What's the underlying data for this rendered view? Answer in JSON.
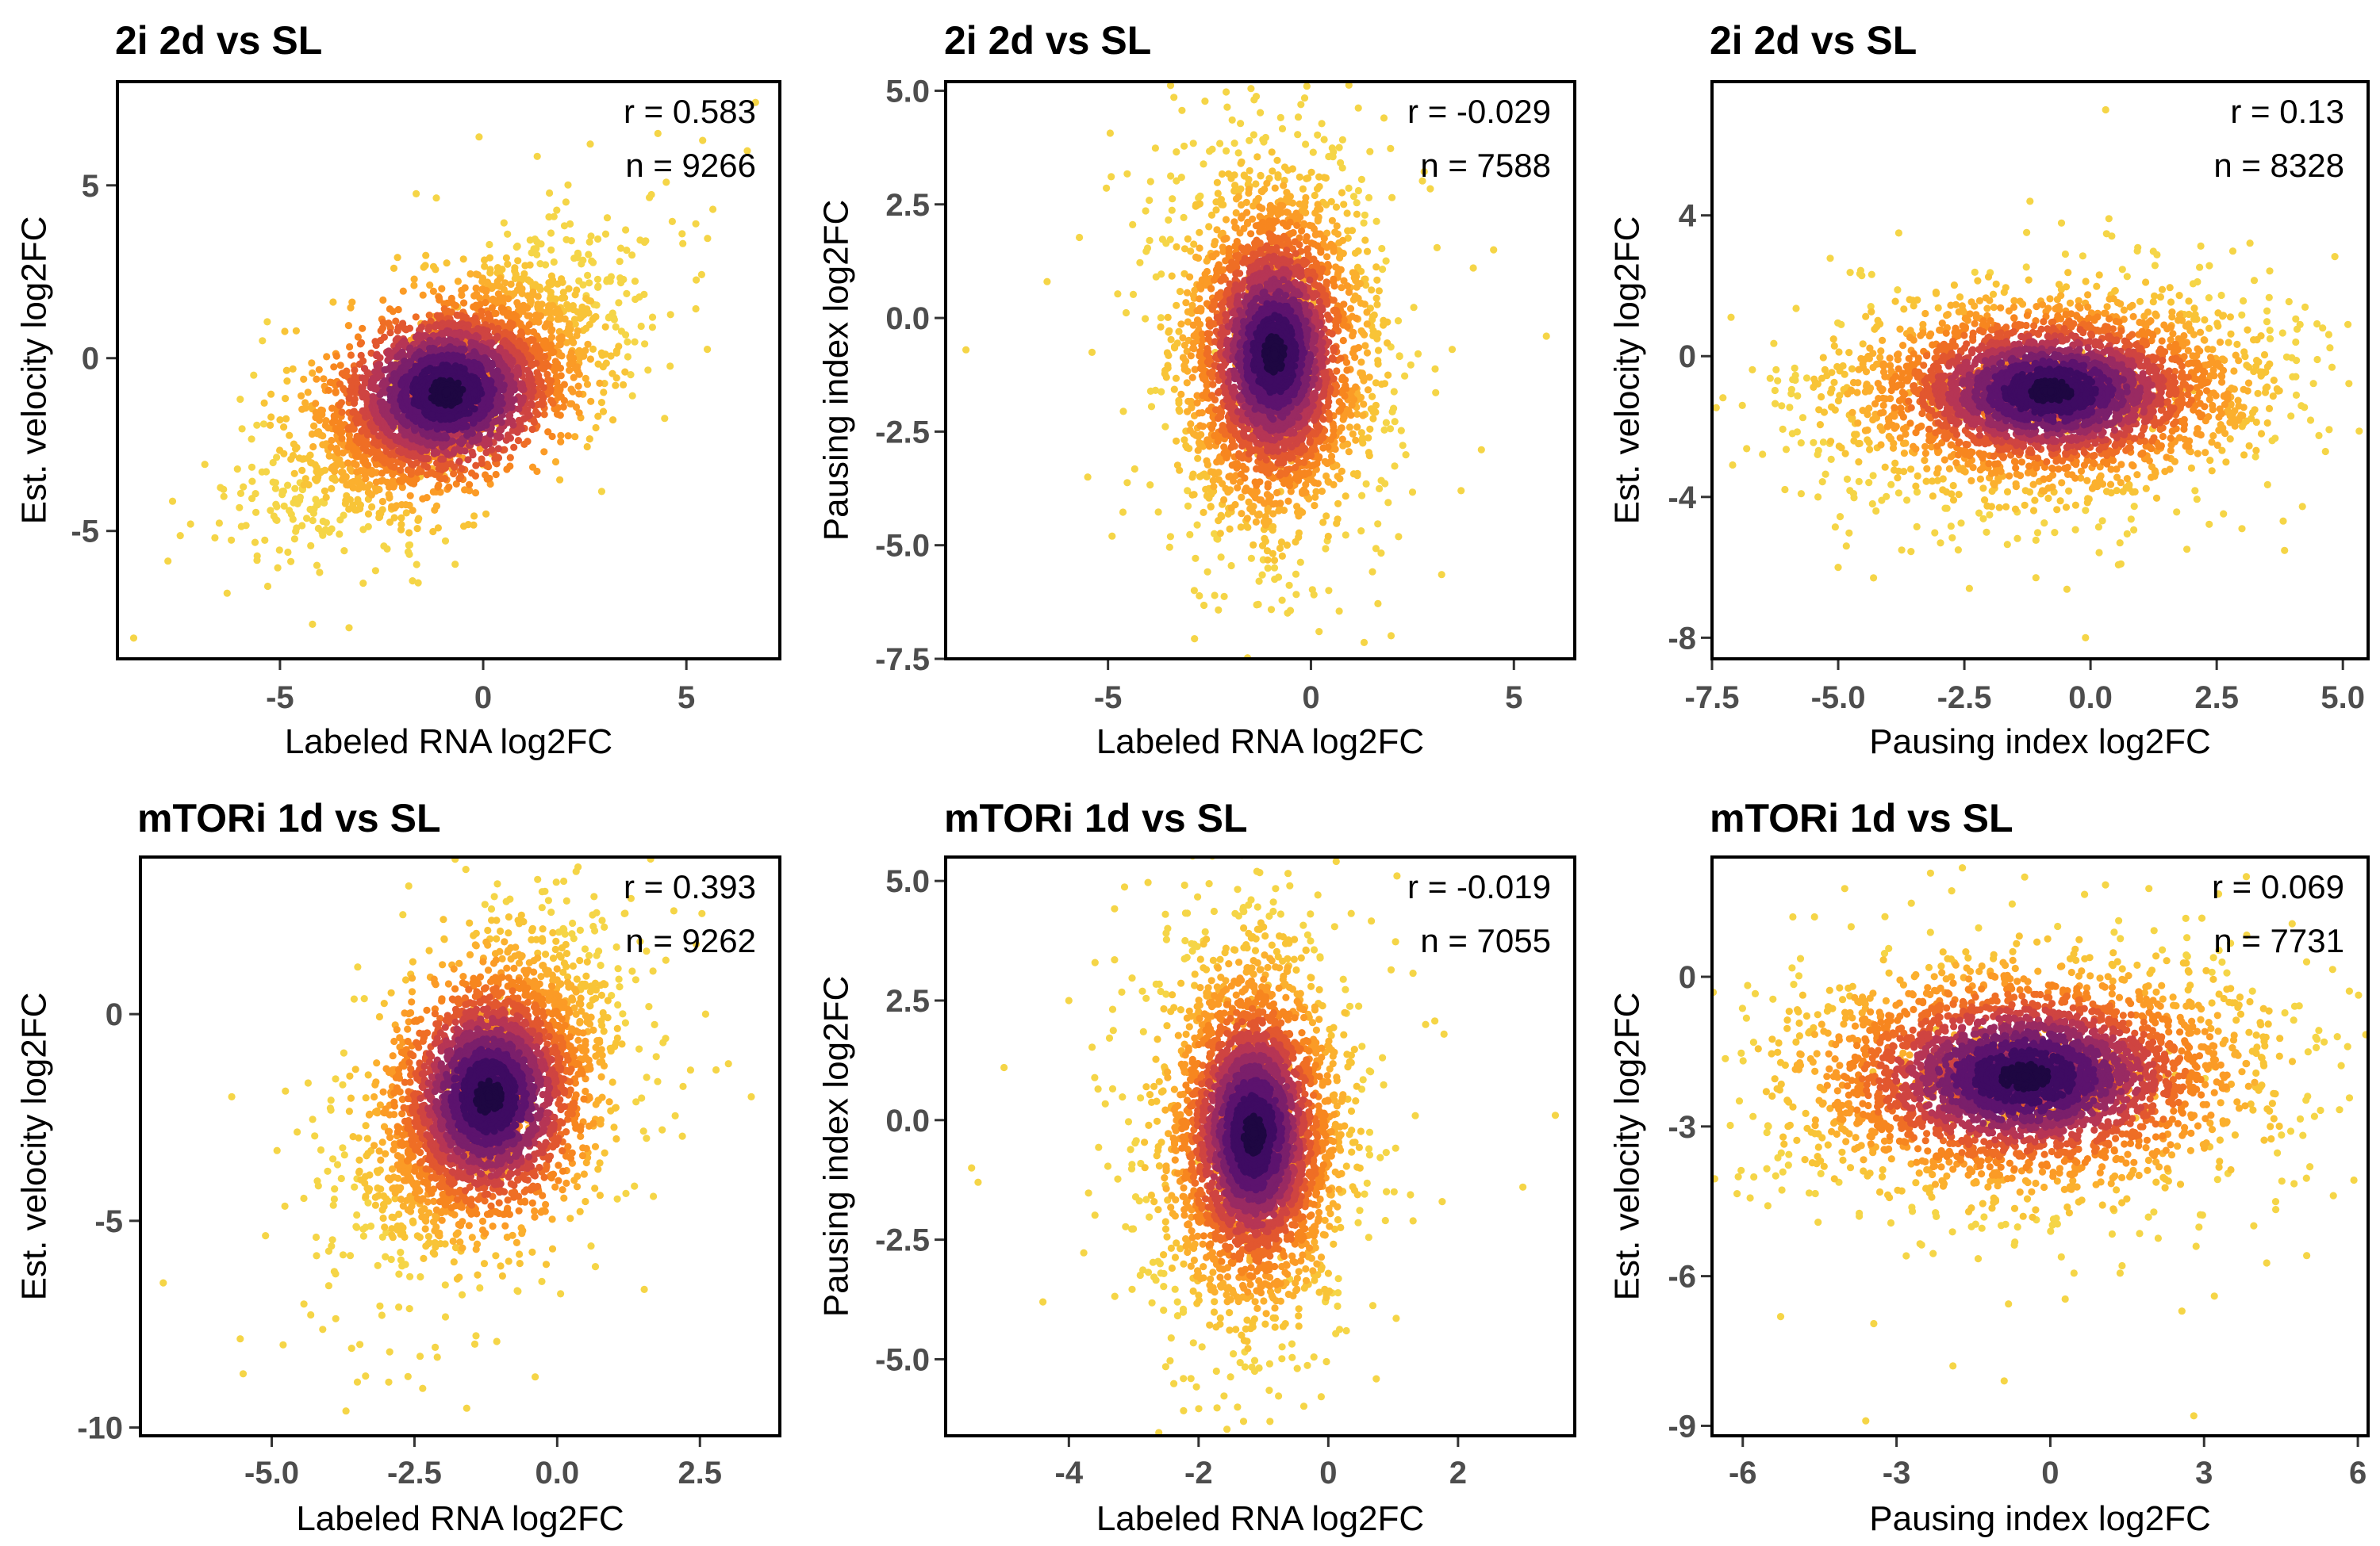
{
  "chart_data": [
    {
      "type": "scatter",
      "title": "2i 2d vs SL",
      "xlabel": "Labeled RNA log2FC",
      "ylabel": "Est. velocity log2FC",
      "xlim": [
        -9,
        7.3
      ],
      "ylim": [
        -8.7,
        8
      ],
      "xticks": [
        -5,
        0,
        5
      ],
      "yticks": [
        -5,
        0,
        5
      ],
      "xtick_labels": [
        "-5",
        "0",
        "5"
      ],
      "ytick_labels": [
        "-5",
        "0",
        "5"
      ],
      "annotations": [
        "r = 0.583",
        "n = 9266"
      ],
      "density": {
        "center": [
          -0.9,
          -1.0
        ],
        "spread": [
          1.6,
          1.5
        ],
        "correlation": 0.583,
        "core_spread": [
          0.45,
          0.75
        ],
        "n": 9266
      },
      "outliers": [
        [
          -8.6,
          -8.1
        ],
        [
          -7.2,
          -4.8
        ],
        [
          -6.6,
          -5.2
        ],
        [
          -6.3,
          -6.8
        ],
        [
          -5.3,
          -6.6
        ],
        [
          -4.2,
          -7.7
        ],
        [
          -3.3,
          -7.8
        ],
        [
          -1.6,
          -6.5
        ],
        [
          6.5,
          6.0
        ],
        [
          6.7,
          7.4
        ],
        [
          5.4,
          6.3
        ],
        [
          4.3,
          6.5
        ],
        [
          -0.1,
          6.4
        ]
      ]
    },
    {
      "type": "scatter",
      "title": "2i 2d vs SL",
      "xlabel": "Labeled RNA log2FC",
      "ylabel": "Pausing index log2FC",
      "xlim": [
        -9,
        6.5
      ],
      "ylim": [
        -7.5,
        5.2
      ],
      "xticks": [
        -5,
        0,
        5
      ],
      "yticks": [
        -7.5,
        -5,
        -2.5,
        0,
        2.5,
        5
      ],
      "xtick_labels": [
        "-5",
        "0",
        "5"
      ],
      "ytick_labels": [
        "-7.5",
        "-5.0",
        "-2.5",
        "0.0",
        "2.5",
        "5.0"
      ],
      "annotations": [
        "r = -0.029",
        "n = 7588"
      ],
      "density": {
        "center": [
          -0.9,
          -0.8
        ],
        "spread": [
          1.0,
          1.6
        ],
        "correlation": -0.029,
        "core_spread": [
          0.35,
          0.8
        ],
        "n": 7588
      },
      "outliers": [
        [
          -8.5,
          -0.7
        ],
        [
          -6.5,
          0.8
        ],
        [
          -5.5,
          -3.5
        ],
        [
          -4.9,
          -4.8
        ],
        [
          -1.4,
          4.8
        ],
        [
          -0.1,
          5.1
        ],
        [
          0.2,
          -6.9
        ],
        [
          1.8,
          4.4
        ],
        [
          4.5,
          1.5
        ],
        [
          5.8,
          -0.4
        ],
        [
          4.2,
          -2.9
        ],
        [
          3.7,
          -3.8
        ],
        [
          4.0,
          1.1
        ]
      ]
    },
    {
      "type": "scatter",
      "title": "2i 2d vs SL",
      "xlabel": "Pausing index log2FC",
      "ylabel": "Est. velocity log2FC",
      "xlim": [
        -7.5,
        5.5
      ],
      "ylim": [
        -8.6,
        7.8
      ],
      "xticks": [
        -7.5,
        -5,
        -2.5,
        0,
        2.5,
        5
      ],
      "yticks": [
        -8,
        -4,
        0,
        4
      ],
      "xtick_labels": [
        "-7.5",
        "-5.0",
        "-2.5",
        "0.0",
        "2.5",
        "5.0"
      ],
      "ytick_labels": [
        "-8",
        "-4",
        "0",
        "4"
      ],
      "annotations": [
        "r = 0.13",
        "n = 8328"
      ],
      "density": {
        "center": [
          -0.8,
          -1.0
        ],
        "spread": [
          1.7,
          1.2
        ],
        "correlation": 0.13,
        "core_spread": [
          0.85,
          0.35
        ],
        "n": 8328
      },
      "outliers": [
        [
          -6.9,
          -1.4
        ],
        [
          -6.2,
          -0.7
        ],
        [
          -5.0,
          -6.0
        ],
        [
          -4.3,
          -6.3
        ],
        [
          -2.4,
          -6.6
        ],
        [
          -0.1,
          -8.0
        ],
        [
          0.3,
          7.0
        ],
        [
          -1.2,
          4.4
        ],
        [
          4.6,
          0.8
        ],
        [
          5.1,
          0.9
        ],
        [
          3.6,
          -2.4
        ],
        [
          3.0,
          -4.9
        ],
        [
          -3.8,
          3.5
        ]
      ]
    },
    {
      "type": "scatter",
      "title": "mTORi 1d vs SL",
      "xlabel": "Labeled RNA log2FC",
      "ylabel": "Est. velocity log2FC",
      "xlim": [
        -7.3,
        3.9
      ],
      "ylim": [
        -10.2,
        3.8
      ],
      "xticks": [
        -5,
        -2.5,
        0,
        2.5
      ],
      "yticks": [
        -10,
        -5,
        0
      ],
      "xtick_labels": [
        "-5.0",
        "-2.5",
        "0.0",
        "2.5"
      ],
      "ytick_labels": [
        "-10",
        "-5",
        "0"
      ],
      "annotations": [
        "r = 0.393",
        "n = 9262"
      ],
      "density": {
        "center": [
          -1.2,
          -2.0
        ],
        "spread": [
          0.9,
          1.6
        ],
        "correlation": 0.393,
        "core_spread": [
          0.25,
          0.7
        ],
        "n": 9262
      },
      "outliers": [
        [
          -6.9,
          -6.5
        ],
        [
          -5.5,
          -8.7
        ],
        [
          -4.8,
          -8.0
        ],
        [
          -3.7,
          -9.6
        ],
        [
          -3.5,
          -8.9
        ],
        [
          -2.1,
          -8.3
        ],
        [
          -1.6,
          3.5
        ],
        [
          -2.6,
          3.1
        ],
        [
          2.6,
          0.0
        ],
        [
          3.4,
          -2.0
        ],
        [
          3.0,
          -1.2
        ],
        [
          -5.7,
          -2.0
        ]
      ]
    },
    {
      "type": "scatter",
      "title": "mTORi 1d vs SL",
      "xlabel": "Labeled RNA log2FC",
      "ylabel": "Pausing index log2FC",
      "xlim": [
        -5.9,
        3.8
      ],
      "ylim": [
        -6.6,
        5.5
      ],
      "xticks": [
        -4,
        -2,
        0,
        2
      ],
      "yticks": [
        -5,
        -2.5,
        0,
        2.5,
        5
      ],
      "xtick_labels": [
        "-4",
        "-2",
        "0",
        "2"
      ],
      "ytick_labels": [
        "-5.0",
        "-2.5",
        "0.0",
        "2.5",
        "5.0"
      ],
      "annotations": [
        "r = -0.019",
        "n = 7055"
      ],
      "density": {
        "center": [
          -1.15,
          -0.3
        ],
        "spread": [
          0.6,
          1.6
        ],
        "correlation": -0.019,
        "core_spread": [
          0.25,
          0.85
        ],
        "n": 7055
      },
      "outliers": [
        [
          -5.5,
          -1.0
        ],
        [
          -5.4,
          -1.3
        ],
        [
          -5.0,
          1.1
        ],
        [
          -4.0,
          2.5
        ],
        [
          -1.1,
          5.2
        ],
        [
          -0.9,
          -6.3
        ],
        [
          -1.4,
          -6.0
        ],
        [
          1.5,
          2.0
        ],
        [
          3.0,
          -1.4
        ],
        [
          3.5,
          0.1
        ],
        [
          -4.4,
          -3.8
        ]
      ]
    },
    {
      "type": "scatter",
      "title": "mTORi 1d vs SL",
      "xlabel": "Pausing index log2FC",
      "ylabel": "Est. velocity log2FC",
      "xlim": [
        -6.6,
        6.2
      ],
      "ylim": [
        -9.2,
        2.4
      ],
      "xticks": [
        -6,
        -3,
        0,
        3,
        6
      ],
      "yticks": [
        -9,
        -6,
        -3,
        0
      ],
      "xtick_labels": [
        "-6",
        "-3",
        "0",
        "3",
        "6"
      ],
      "ytick_labels": [
        "-9",
        "-6",
        "-3",
        "0"
      ],
      "annotations": [
        "r = 0.069",
        "n = 7731"
      ],
      "density": {
        "center": [
          -0.5,
          -2.0
        ],
        "spread": [
          1.9,
          1.0
        ],
        "correlation": 0.069,
        "core_spread": [
          0.85,
          0.3
        ],
        "n": 7731
      },
      "outliers": [
        [
          -5.8,
          -2.8
        ],
        [
          -5.5,
          -3.0
        ],
        [
          -4.6,
          1.2
        ],
        [
          -3.6,
          -8.9
        ],
        [
          -1.9,
          -7.8
        ],
        [
          -0.9,
          -8.1
        ],
        [
          -0.5,
          2.0
        ],
        [
          2.8,
          -8.8
        ],
        [
          3.2,
          -6.4
        ],
        [
          5.0,
          0.3
        ],
        [
          5.8,
          -1.4
        ],
        [
          5.6,
          -1.2
        ]
      ]
    }
  ]
}
